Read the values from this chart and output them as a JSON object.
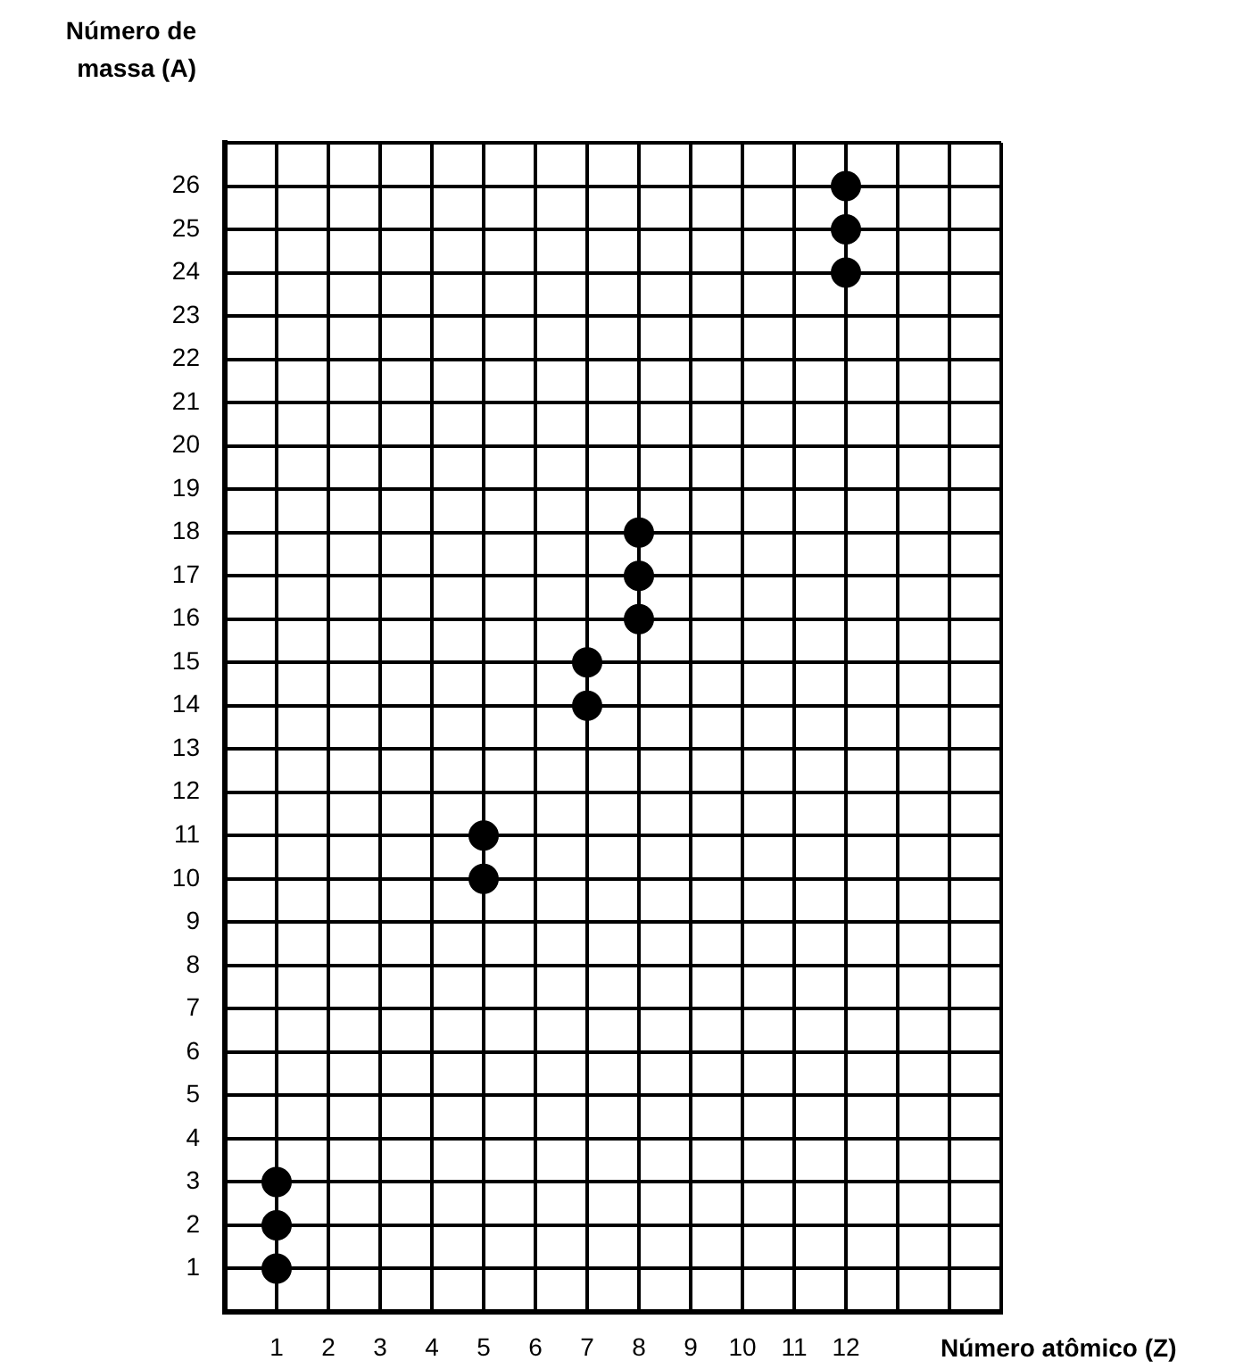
{
  "chart_data": {
    "type": "scatter",
    "xlabel": "Número atômico (Z)",
    "ylabel": "Número de massa (A)",
    "x": [
      1,
      1,
      1,
      5,
      5,
      7,
      7,
      8,
      8,
      8,
      12,
      12,
      12
    ],
    "series": [
      {
        "color": "#000000",
        "values": [
          1,
          2,
          3,
          10,
          11,
          14,
          15,
          16,
          17,
          18,
          24,
          25,
          26
        ]
      }
    ],
    "xlim": [
      0,
      15
    ],
    "xticks": [
      {
        "value": 0,
        "label": null
      },
      1,
      2,
      3,
      4,
      5,
      6,
      7,
      8,
      9,
      10,
      11,
      12,
      {
        "value": 13,
        "label": null
      },
      {
        "value": 14,
        "label": null
      },
      {
        "value": 15,
        "label": null
      }
    ],
    "ylim": [
      0,
      27
    ],
    "yticks": [
      {
        "value": 0,
        "label": null
      },
      1,
      2,
      3,
      4,
      5,
      6,
      7,
      8,
      9,
      10,
      11,
      12,
      13,
      14,
      15,
      16,
      17,
      18,
      19,
      20,
      21,
      22,
      23,
      24,
      25,
      26,
      {
        "value": 27,
        "label": null
      }
    ],
    "grid": true,
    "legend": false,
    "marker": "circle"
  }
}
